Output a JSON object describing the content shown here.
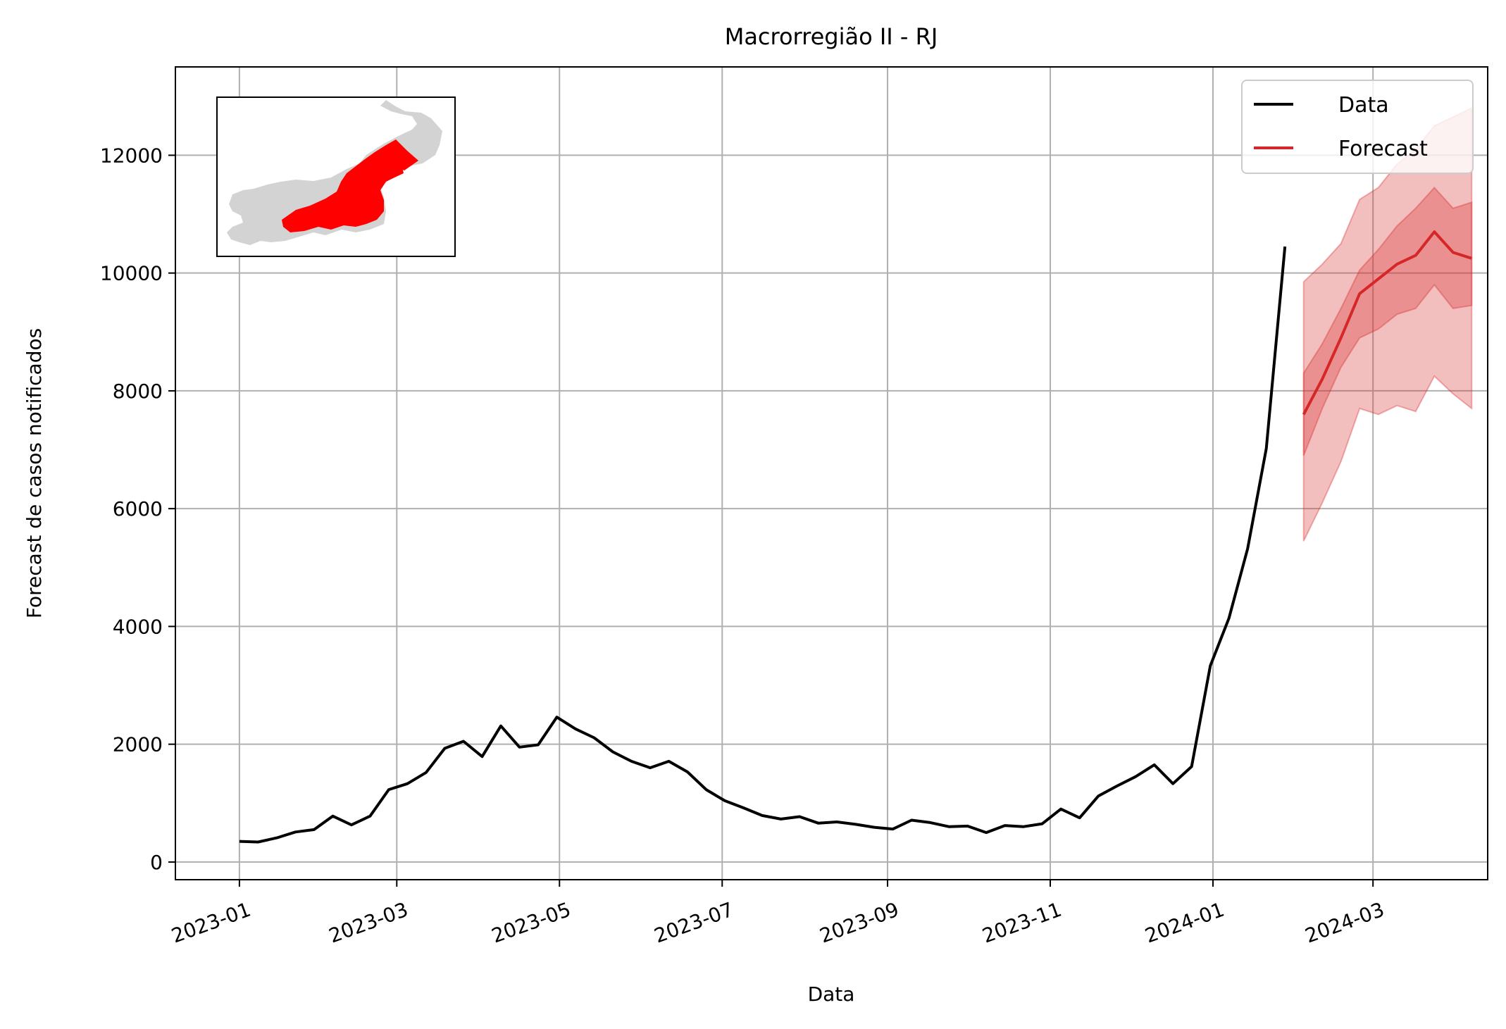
{
  "chart_data": {
    "type": "line",
    "title": "Macrorregião II - RJ",
    "xlabel": "Data",
    "ylabel": "Forecast de casos notificados",
    "xlim": [
      "2022-12-08",
      "2024-04-13"
    ],
    "ylim": [
      -300,
      13500
    ],
    "grid": true,
    "legend_placement": "top-right",
    "x_ticks": [
      "2023-01-01",
      "2023-03-01",
      "2023-05-01",
      "2023-07-01",
      "2023-09-01",
      "2023-11-01",
      "2024-01-01",
      "2024-03-01"
    ],
    "x_tick_labels": [
      "2023-01",
      "2023-03",
      "2023-05",
      "2023-07",
      "2023-09",
      "2023-11",
      "2024-01",
      "2024-03"
    ],
    "y_ticks": [
      0,
      2000,
      4000,
      6000,
      8000,
      10000,
      12000
    ],
    "y_tick_labels": [
      "0",
      "2000",
      "4000",
      "6000",
      "8000",
      "10000",
      "12000"
    ],
    "colors": {
      "data": "#000000",
      "forecast": "#d62728",
      "band": "#d62728",
      "map_highlight": "#ff0000",
      "map_base": "#d3d3d3"
    },
    "series": [
      {
        "name": "Data",
        "x": [
          "2023-01-01",
          "2023-01-08",
          "2023-01-15",
          "2023-01-22",
          "2023-01-29",
          "2023-02-05",
          "2023-02-12",
          "2023-02-19",
          "2023-02-26",
          "2023-03-05",
          "2023-03-12",
          "2023-03-19",
          "2023-03-26",
          "2023-04-02",
          "2023-04-09",
          "2023-04-16",
          "2023-04-23",
          "2023-04-30",
          "2023-05-07",
          "2023-05-14",
          "2023-05-21",
          "2023-05-28",
          "2023-06-04",
          "2023-06-11",
          "2023-06-18",
          "2023-06-25",
          "2023-07-02",
          "2023-07-09",
          "2023-07-16",
          "2023-07-23",
          "2023-07-30",
          "2023-08-06",
          "2023-08-13",
          "2023-08-20",
          "2023-08-27",
          "2023-09-03",
          "2023-09-10",
          "2023-09-17",
          "2023-09-24",
          "2023-10-01",
          "2023-10-08",
          "2023-10-15",
          "2023-10-22",
          "2023-10-29",
          "2023-11-05",
          "2023-11-12",
          "2023-11-19",
          "2023-11-26",
          "2023-12-03",
          "2023-12-10",
          "2023-12-17",
          "2023-12-24",
          "2023-12-31",
          "2024-01-07",
          "2024-01-14",
          "2024-01-21",
          "2024-01-28"
        ],
        "values": [
          350,
          340,
          410,
          510,
          550,
          780,
          630,
          780,
          1230,
          1330,
          1520,
          1930,
          2050,
          1790,
          2310,
          1950,
          1990,
          2460,
          2260,
          2110,
          1870,
          1710,
          1600,
          1710,
          1530,
          1230,
          1040,
          920,
          790,
          730,
          770,
          660,
          680,
          640,
          590,
          560,
          710,
          670,
          600,
          610,
          500,
          620,
          600,
          650,
          900,
          750,
          1120,
          1290,
          1450,
          1650,
          1330,
          1620,
          3330,
          4140,
          5320,
          7020,
          10450
        ]
      },
      {
        "name": "Forecast",
        "x": [
          "2024-02-04",
          "2024-02-11",
          "2024-02-18",
          "2024-02-25",
          "2024-03-03",
          "2024-03-10",
          "2024-03-17",
          "2024-03-24",
          "2024-03-31",
          "2024-04-07"
        ],
        "values": [
          7600,
          8200,
          8900,
          9650,
          9900,
          10150,
          10300,
          10700,
          10350,
          10250
        ],
        "inner_lower": [
          6900,
          7700,
          8400,
          8900,
          9050,
          9300,
          9400,
          9800,
          9400,
          9450
        ],
        "inner_upper": [
          8300,
          8800,
          9400,
          10050,
          10400,
          10800,
          11100,
          11450,
          11100,
          11200
        ],
        "outer_lower": [
          5450,
          6100,
          6800,
          7700,
          7600,
          7750,
          7650,
          8250,
          7950,
          7700
        ],
        "outer_upper": [
          9850,
          10150,
          10500,
          11250,
          11450,
          11850,
          12100,
          12500,
          12650,
          12800
        ]
      }
    ]
  }
}
